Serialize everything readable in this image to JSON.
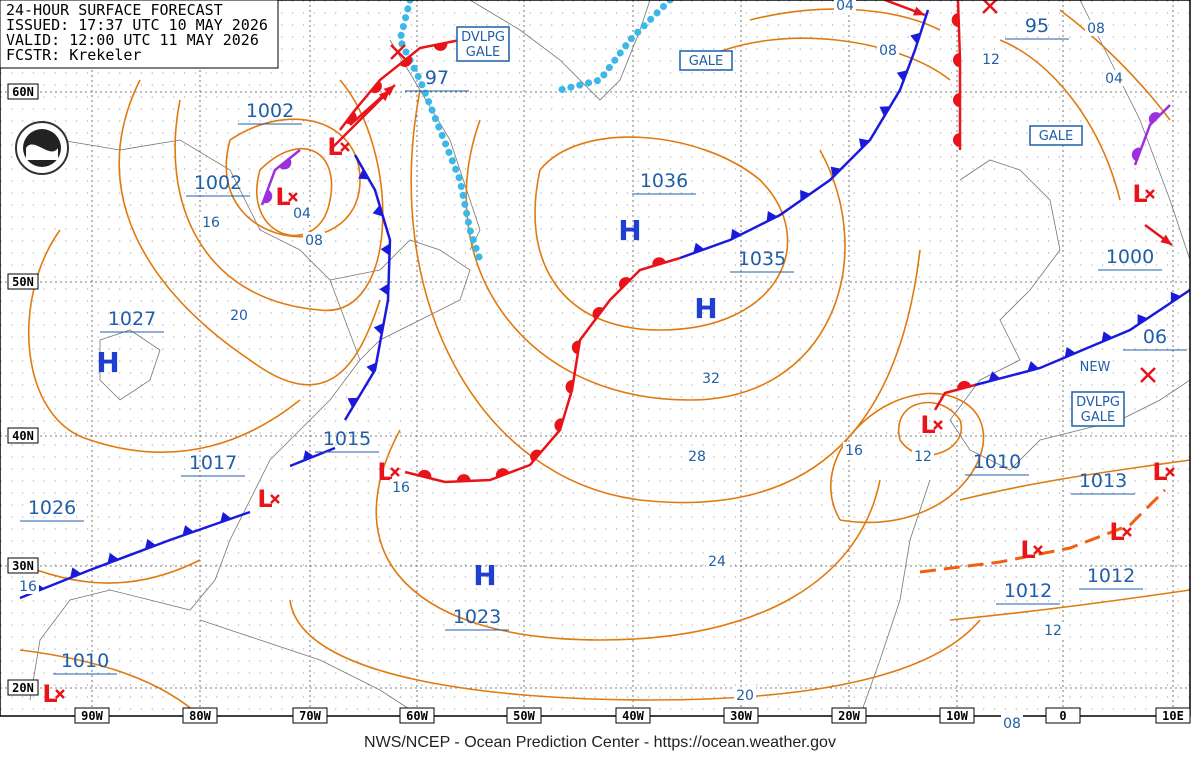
{
  "header": {
    "lines": [
      "24-HOUR SURFACE FORECAST",
      "ISSUED: 17:37 UTC 10 MAY 2026",
      "VALID: 12:00 UTC 11 MAY 2026",
      "FCSTR: Krekeler"
    ]
  },
  "latitude_labels": [
    "60N",
    "50N",
    "40N",
    "30N",
    "20N"
  ],
  "longitude_labels": [
    "90W",
    "80W",
    "70W",
    "60W",
    "50W",
    "40W",
    "30W",
    "20W",
    "10W",
    "0",
    "10E"
  ],
  "pressure_labels": [
    "1002",
    "1002",
    "1027",
    "1017",
    "1026",
    "1015",
    "97",
    "1036",
    "1035",
    "1010",
    "1023",
    "95",
    "1000",
    "06",
    "1010",
    "1013",
    "1012",
    "1012"
  ],
  "high_centers": [
    "H",
    "H",
    "H",
    "H"
  ],
  "low_centers": [
    "L",
    "L",
    "L",
    "L",
    "L",
    "L",
    "L",
    "L",
    "L",
    "L"
  ],
  "isobar_labels": [
    "04",
    "08",
    "16",
    "20",
    "16",
    "32",
    "28",
    "24",
    "16",
    "12",
    "12",
    "20",
    "08",
    "12",
    "08",
    "04",
    "08",
    "04",
    "16"
  ],
  "warnings": [
    [
      "DVLPG",
      "GALE"
    ],
    [
      "GALE"
    ],
    [
      "GALE"
    ],
    [
      "DVLPG",
      "GALE"
    ]
  ],
  "notes": [
    "NEW"
  ],
  "footer": "NWS/NCEP - Ocean Prediction Center - https://ocean.weather.gov"
}
